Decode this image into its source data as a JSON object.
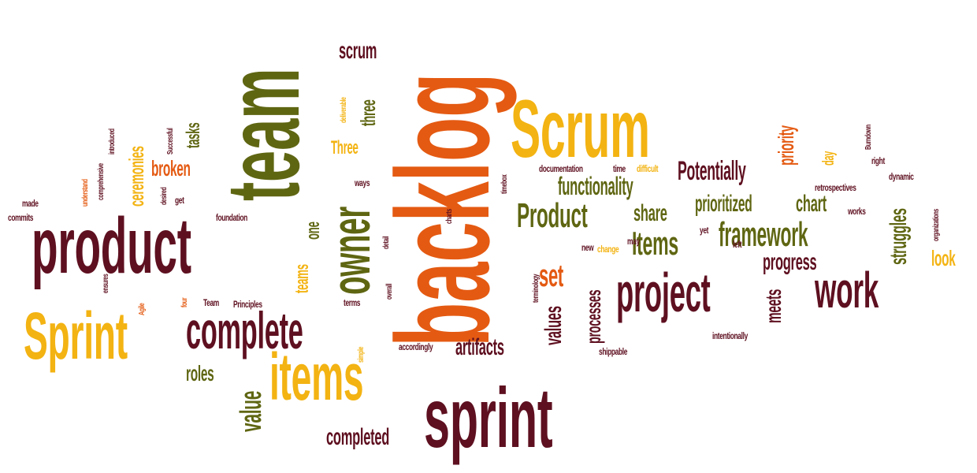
{
  "palette": {
    "maroon": "#5e1020",
    "olive": "#5f6612",
    "orange": "#e45a12",
    "yellow": "#f3b312",
    "gold": "#e0a814",
    "darkred": "#7a1a12"
  },
  "words": [
    {
      "text": "backlog",
      "color": "orange"
    },
    {
      "text": "sprint",
      "color": "maroon"
    },
    {
      "text": "team",
      "color": "olive"
    },
    {
      "text": "Scrum",
      "color": "yellow"
    },
    {
      "text": "product",
      "color": "maroon"
    },
    {
      "text": "Sprint",
      "color": "yellow"
    },
    {
      "text": "complete",
      "color": "maroon"
    },
    {
      "text": "items",
      "color": "yellow"
    },
    {
      "text": "owner",
      "color": "olive"
    },
    {
      "text": "project",
      "color": "maroon"
    },
    {
      "text": "work",
      "color": "maroon"
    },
    {
      "text": "framework",
      "color": "olive"
    },
    {
      "text": "Product",
      "color": "olive"
    },
    {
      "text": "Items",
      "color": "olive"
    },
    {
      "text": "functionality",
      "color": "olive"
    },
    {
      "text": "Potentially",
      "color": "maroon"
    },
    {
      "text": "prioritized",
      "color": "olive"
    },
    {
      "text": "chart",
      "color": "olive"
    },
    {
      "text": "progress",
      "color": "maroon"
    },
    {
      "text": "share",
      "color": "olive"
    },
    {
      "text": "set",
      "color": "orange"
    },
    {
      "text": "struggles",
      "color": "olive"
    },
    {
      "text": "priority",
      "color": "orange"
    },
    {
      "text": "look",
      "color": "yellow"
    },
    {
      "text": "meets",
      "color": "maroon"
    },
    {
      "text": "values",
      "color": "maroon"
    },
    {
      "text": "processes",
      "color": "maroon"
    },
    {
      "text": "artifacts",
      "color": "maroon"
    },
    {
      "text": "completed",
      "color": "maroon"
    },
    {
      "text": "value",
      "color": "olive"
    },
    {
      "text": "roles",
      "color": "olive"
    },
    {
      "text": "broken",
      "color": "orange"
    },
    {
      "text": "tasks",
      "color": "olive"
    },
    {
      "text": "ceremonies",
      "color": "yellow"
    },
    {
      "text": "teams",
      "color": "yellow"
    },
    {
      "text": "one",
      "color": "olive"
    },
    {
      "text": "scrum",
      "color": "maroon"
    },
    {
      "text": "three",
      "color": "olive"
    },
    {
      "text": "Three",
      "color": "yellow"
    },
    {
      "text": "day",
      "color": "yellow"
    },
    {
      "text": "documentation",
      "color": "maroon"
    },
    {
      "text": "time",
      "color": "maroon"
    },
    {
      "text": "difficult",
      "color": "yellow"
    },
    {
      "text": "Burndown",
      "color": "maroon"
    },
    {
      "text": "right",
      "color": "maroon"
    },
    {
      "text": "dynamic",
      "color": "maroon"
    },
    {
      "text": "retrospectives",
      "color": "maroon"
    },
    {
      "text": "works",
      "color": "maroon"
    },
    {
      "text": "organizations",
      "color": "maroon"
    },
    {
      "text": "yet",
      "color": "maroon"
    },
    {
      "text": "left",
      "color": "maroon"
    },
    {
      "text": "change",
      "color": "yellow"
    },
    {
      "text": "new",
      "color": "maroon"
    },
    {
      "text": "may",
      "color": "maroon"
    },
    {
      "text": "shippable",
      "color": "maroon"
    },
    {
      "text": "intentionally",
      "color": "maroon"
    },
    {
      "text": "accordingly",
      "color": "maroon"
    },
    {
      "text": "terms",
      "color": "maroon"
    },
    {
      "text": "simple",
      "color": "yellow"
    },
    {
      "text": "overall",
      "color": "maroon"
    },
    {
      "text": "detail",
      "color": "maroon"
    },
    {
      "text": "terminology",
      "color": "maroon"
    },
    {
      "text": "charts",
      "color": "maroon"
    },
    {
      "text": "ways",
      "color": "maroon"
    },
    {
      "text": "timebox",
      "color": "maroon"
    },
    {
      "text": "deliverable",
      "color": "yellow"
    },
    {
      "text": "Principles",
      "color": "maroon"
    },
    {
      "text": "Team",
      "color": "maroon"
    },
    {
      "text": "four",
      "color": "orange"
    },
    {
      "text": "Agile",
      "color": "orange"
    },
    {
      "text": "ensures",
      "color": "maroon"
    },
    {
      "text": "foundation",
      "color": "maroon"
    },
    {
      "text": "get",
      "color": "maroon"
    },
    {
      "text": "desired",
      "color": "maroon"
    },
    {
      "text": "Successful",
      "color": "maroon"
    },
    {
      "text": "introduced",
      "color": "maroon"
    },
    {
      "text": "comprehensive",
      "color": "maroon"
    },
    {
      "text": "understand",
      "color": "orange"
    },
    {
      "text": "made",
      "color": "maroon"
    },
    {
      "text": "commits",
      "color": "maroon"
    }
  ]
}
